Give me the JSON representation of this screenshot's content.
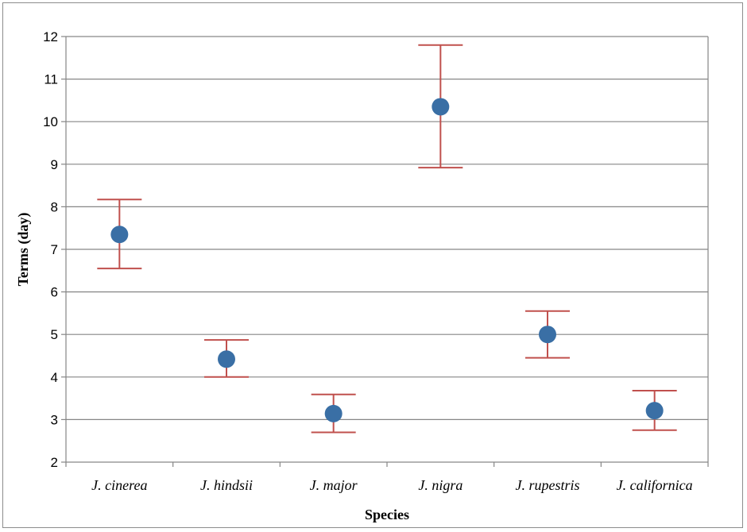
{
  "chart_data": {
    "type": "scatter",
    "title": "",
    "xlabel": "Species",
    "ylabel": "Terms (day)",
    "categories": [
      "J. cinerea",
      "J. hindsii",
      "J. major",
      "J. nigra",
      "J. rupestris",
      "J. californica"
    ],
    "series": [
      {
        "values": [
          7.35,
          4.42,
          3.14,
          10.35,
          5.0,
          3.21
        ],
        "error_low": [
          6.55,
          4.0,
          2.7,
          8.92,
          4.45,
          2.75
        ],
        "error_high": [
          8.17,
          4.87,
          3.59,
          11.8,
          5.55,
          3.68
        ],
        "marker_color": "#3a6fa5",
        "error_bar_color": "#c0504d"
      }
    ],
    "ylim": [
      2,
      12
    ],
    "yticks": [
      2,
      3,
      4,
      5,
      6,
      7,
      8,
      9,
      10,
      11,
      12
    ],
    "grid": true,
    "legend": "none"
  }
}
